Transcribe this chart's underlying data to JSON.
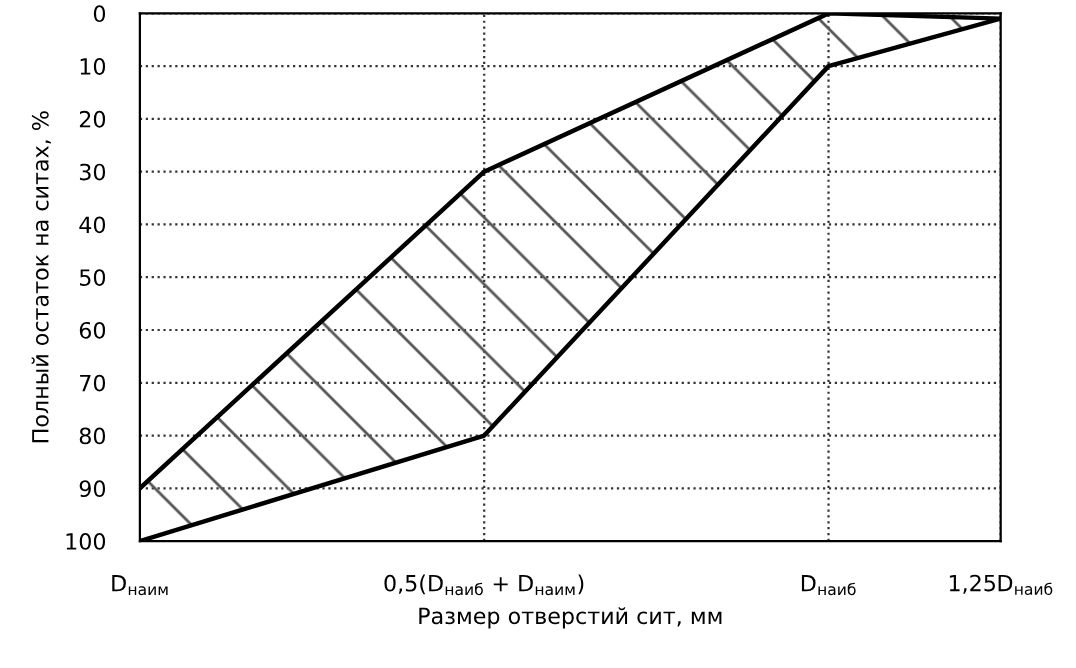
{
  "chart_data": {
    "type": "line",
    "xlabel": "Размер отверстий сит, мм",
    "ylabel": "Полный остаток на ситах, %",
    "x": [
      0,
      0.5,
      1,
      1.25
    ],
    "xlim": [
      0,
      1.25
    ],
    "xticks": [
      {
        "value": 0,
        "label": "D$_{наим}$"
      },
      {
        "value": 0.5,
        "label": "0,5(D$_{наиб}$ + D$_{наим}$)"
      },
      {
        "value": 1,
        "label": "D$_{наиб}$"
      },
      {
        "value": 1.25,
        "label": "1,25D$_{наиб}$"
      }
    ],
    "ylim": [
      100,
      0
    ],
    "yticks": [
      0,
      10,
      20,
      30,
      40,
      50,
      60,
      70,
      80,
      90,
      100
    ],
    "series": [
      {
        "color": "#000000",
        "values": [
          90,
          30,
          0,
          1
        ]
      },
      {
        "color": "#000000",
        "values": [
          100,
          80,
          10,
          1
        ]
      }
    ],
    "grid": true,
    "marker": "none",
    "line_style": "solid"
  }
}
